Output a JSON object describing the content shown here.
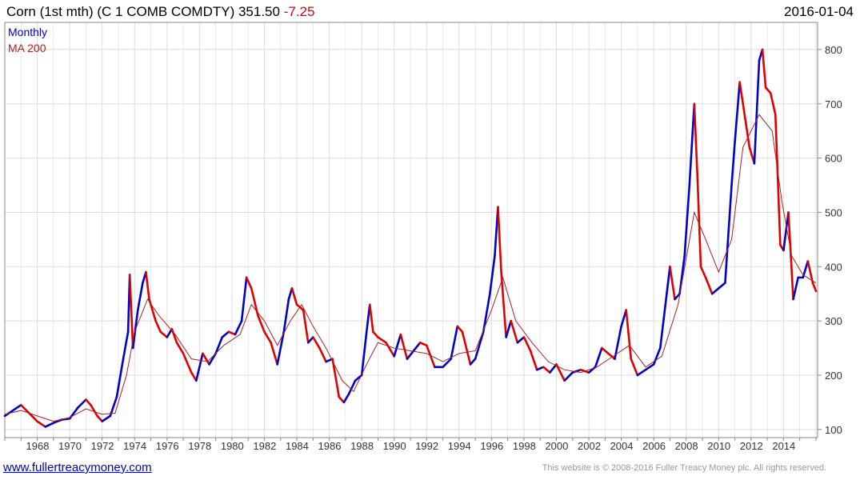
{
  "header": {
    "title": "Corn (1st mth) (C 1 COMB COMDTY) 351.50",
    "change": "-7.25",
    "date": "2016-01-04"
  },
  "footer": {
    "site": "www.fullertreacymoney.com",
    "copyright": "This website is © 2008-2016 Fuller Treacy Money plc. All rights reserved."
  },
  "colors": {
    "up": "#0000cc",
    "down": "#e00000",
    "ma": "#aa2222",
    "grid": "#dddddd",
    "axis": "#888888"
  },
  "chart_data": {
    "type": "line",
    "legend": [
      "Monthly",
      "MA 200"
    ],
    "legend_position": "top-left",
    "x_tick_labels": [
      "1968",
      "1970",
      "1972",
      "1974",
      "1976",
      "1978",
      "1980",
      "1982",
      "1984",
      "1986",
      "1988",
      "1990",
      "1992",
      "1994",
      "1996",
      "1998",
      "2000",
      "2002",
      "2004",
      "2006",
      "2008",
      "2010",
      "2012",
      "2014"
    ],
    "y_ticks": [
      100,
      200,
      300,
      400,
      500,
      600,
      700,
      800
    ],
    "xlim": [
      1966.0,
      2016.1
    ],
    "ylim": [
      85,
      850
    ],
    "grid": true,
    "y_axis_side": "right",
    "series": [
      {
        "name": "Monthly",
        "points": [
          [
            1966.0,
            125
          ],
          [
            1966.5,
            135
          ],
          [
            1967.0,
            145
          ],
          [
            1967.5,
            130
          ],
          [
            1968.0,
            115
          ],
          [
            1968.5,
            105
          ],
          [
            1969.0,
            112
          ],
          [
            1969.5,
            118
          ],
          [
            1970.0,
            120
          ],
          [
            1970.5,
            140
          ],
          [
            1971.0,
            155
          ],
          [
            1971.3,
            145
          ],
          [
            1971.7,
            125
          ],
          [
            1972.0,
            115
          ],
          [
            1972.5,
            125
          ],
          [
            1972.9,
            160
          ],
          [
            1973.3,
            230
          ],
          [
            1973.6,
            280
          ],
          [
            1973.7,
            385
          ],
          [
            1973.9,
            250
          ],
          [
            1974.2,
            320
          ],
          [
            1974.5,
            370
          ],
          [
            1974.7,
            390
          ],
          [
            1974.9,
            340
          ],
          [
            1975.3,
            300
          ],
          [
            1975.6,
            280
          ],
          [
            1976.0,
            270
          ],
          [
            1976.3,
            285
          ],
          [
            1976.6,
            260
          ],
          [
            1977.0,
            240
          ],
          [
            1977.5,
            205
          ],
          [
            1977.8,
            190
          ],
          [
            1978.2,
            240
          ],
          [
            1978.6,
            220
          ],
          [
            1979.0,
            240
          ],
          [
            1979.4,
            270
          ],
          [
            1979.8,
            280
          ],
          [
            1980.2,
            275
          ],
          [
            1980.6,
            300
          ],
          [
            1980.9,
            380
          ],
          [
            1981.2,
            360
          ],
          [
            1981.6,
            310
          ],
          [
            1982.0,
            280
          ],
          [
            1982.4,
            260
          ],
          [
            1982.8,
            220
          ],
          [
            1983.2,
            280
          ],
          [
            1983.5,
            340
          ],
          [
            1983.7,
            360
          ],
          [
            1984.0,
            330
          ],
          [
            1984.4,
            320
          ],
          [
            1984.7,
            260
          ],
          [
            1985.0,
            270
          ],
          [
            1985.4,
            250
          ],
          [
            1985.8,
            225
          ],
          [
            1986.2,
            230
          ],
          [
            1986.6,
            160
          ],
          [
            1986.9,
            150
          ],
          [
            1987.2,
            165
          ],
          [
            1987.6,
            190
          ],
          [
            1988.0,
            200
          ],
          [
            1988.3,
            280
          ],
          [
            1988.5,
            330
          ],
          [
            1988.7,
            280
          ],
          [
            1989.0,
            270
          ],
          [
            1989.5,
            260
          ],
          [
            1990.0,
            235
          ],
          [
            1990.4,
            275
          ],
          [
            1990.8,
            230
          ],
          [
            1991.2,
            245
          ],
          [
            1991.6,
            260
          ],
          [
            1992.0,
            255
          ],
          [
            1992.5,
            215
          ],
          [
            1993.0,
            215
          ],
          [
            1993.5,
            230
          ],
          [
            1993.9,
            290
          ],
          [
            1994.2,
            280
          ],
          [
            1994.7,
            220
          ],
          [
            1995.0,
            230
          ],
          [
            1995.5,
            280
          ],
          [
            1995.9,
            350
          ],
          [
            1996.2,
            420
          ],
          [
            1996.4,
            510
          ],
          [
            1996.6,
            390
          ],
          [
            1996.9,
            270
          ],
          [
            1997.2,
            300
          ],
          [
            1997.6,
            260
          ],
          [
            1998.0,
            270
          ],
          [
            1998.4,
            245
          ],
          [
            1998.8,
            210
          ],
          [
            1999.2,
            215
          ],
          [
            1999.6,
            205
          ],
          [
            2000.0,
            220
          ],
          [
            2000.5,
            190
          ],
          [
            2001.0,
            205
          ],
          [
            2001.5,
            210
          ],
          [
            2002.0,
            205
          ],
          [
            2002.4,
            215
          ],
          [
            2002.8,
            250
          ],
          [
            2003.2,
            240
          ],
          [
            2003.6,
            230
          ],
          [
            2004.0,
            290
          ],
          [
            2004.3,
            320
          ],
          [
            2004.6,
            230
          ],
          [
            2005.0,
            200
          ],
          [
            2005.5,
            210
          ],
          [
            2006.0,
            220
          ],
          [
            2006.4,
            250
          ],
          [
            2006.8,
            350
          ],
          [
            2007.0,
            400
          ],
          [
            2007.3,
            340
          ],
          [
            2007.6,
            350
          ],
          [
            2007.9,
            420
          ],
          [
            2008.2,
            550
          ],
          [
            2008.5,
            700
          ],
          [
            2008.7,
            560
          ],
          [
            2008.9,
            400
          ],
          [
            2009.2,
            380
          ],
          [
            2009.6,
            350
          ],
          [
            2010.0,
            360
          ],
          [
            2010.4,
            370
          ],
          [
            2010.8,
            550
          ],
          [
            2011.0,
            630
          ],
          [
            2011.3,
            740
          ],
          [
            2011.6,
            680
          ],
          [
            2011.9,
            620
          ],
          [
            2012.2,
            590
          ],
          [
            2012.5,
            780
          ],
          [
            2012.7,
            800
          ],
          [
            2012.9,
            730
          ],
          [
            2013.2,
            720
          ],
          [
            2013.5,
            680
          ],
          [
            2013.8,
            440
          ],
          [
            2014.0,
            430
          ],
          [
            2014.3,
            500
          ],
          [
            2014.6,
            340
          ],
          [
            2014.9,
            380
          ],
          [
            2015.2,
            380
          ],
          [
            2015.5,
            410
          ],
          [
            2015.8,
            370
          ],
          [
            2016.0,
            355
          ]
        ]
      },
      {
        "name": "MA 200",
        "points": [
          [
            1966.0,
            128
          ],
          [
            1967.0,
            135
          ],
          [
            1968.0,
            125
          ],
          [
            1969.0,
            115
          ],
          [
            1970.0,
            122
          ],
          [
            1971.0,
            138
          ],
          [
            1972.0,
            128
          ],
          [
            1972.8,
            130
          ],
          [
            1973.5,
            200
          ],
          [
            1974.0,
            280
          ],
          [
            1974.8,
            340
          ],
          [
            1975.5,
            310
          ],
          [
            1976.5,
            275
          ],
          [
            1977.5,
            230
          ],
          [
            1978.5,
            225
          ],
          [
            1979.5,
            255
          ],
          [
            1980.5,
            275
          ],
          [
            1981.2,
            330
          ],
          [
            1982.0,
            300
          ],
          [
            1982.8,
            255
          ],
          [
            1983.6,
            300
          ],
          [
            1984.3,
            330
          ],
          [
            1985.0,
            290
          ],
          [
            1985.8,
            250
          ],
          [
            1986.8,
            190
          ],
          [
            1987.5,
            170
          ],
          [
            1988.3,
            220
          ],
          [
            1989.0,
            260
          ],
          [
            1990.0,
            250
          ],
          [
            1991.0,
            245
          ],
          [
            1992.0,
            240
          ],
          [
            1993.0,
            225
          ],
          [
            1994.0,
            240
          ],
          [
            1995.0,
            245
          ],
          [
            1996.0,
            320
          ],
          [
            1996.7,
            380
          ],
          [
            1997.5,
            300
          ],
          [
            1998.5,
            260
          ],
          [
            1999.5,
            225
          ],
          [
            2000.5,
            210
          ],
          [
            2001.5,
            205
          ],
          [
            2002.5,
            215
          ],
          [
            2003.5,
            235
          ],
          [
            2004.5,
            255
          ],
          [
            2005.5,
            215
          ],
          [
            2006.5,
            235
          ],
          [
            2007.5,
            330
          ],
          [
            2008.5,
            500
          ],
          [
            2009.2,
            450
          ],
          [
            2010.0,
            390
          ],
          [
            2010.8,
            450
          ],
          [
            2011.5,
            620
          ],
          [
            2012.5,
            680
          ],
          [
            2013.3,
            650
          ],
          [
            2013.9,
            520
          ],
          [
            2014.5,
            420
          ],
          [
            2015.2,
            385
          ],
          [
            2016.0,
            370
          ]
        ]
      }
    ]
  }
}
